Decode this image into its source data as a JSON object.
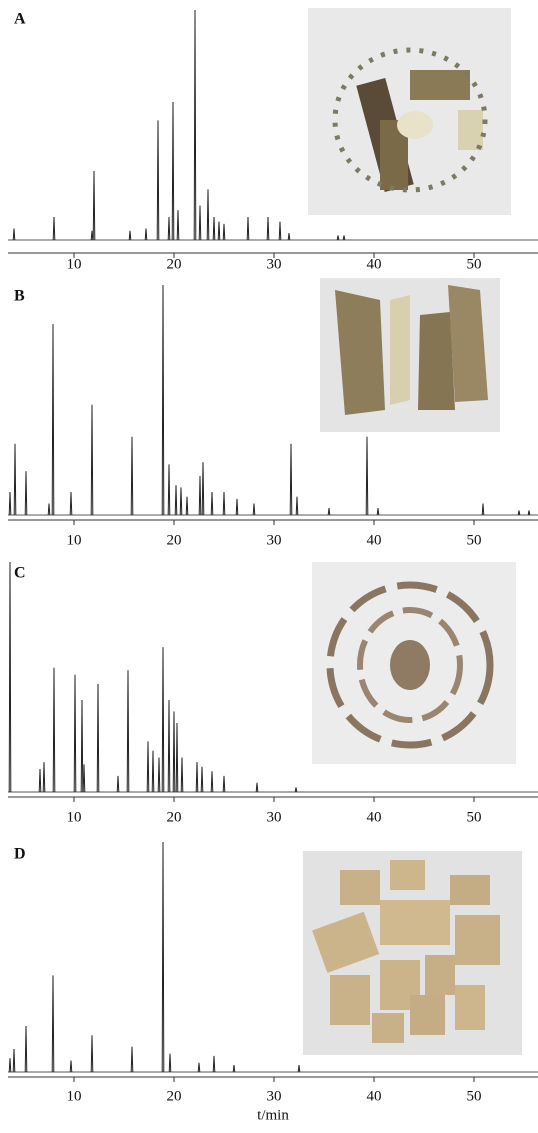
{
  "chart_data": [
    {
      "type": "chromatogram",
      "title": "A",
      "color": "#222",
      "x": [
        4.0,
        8.0,
        11.8,
        12.0,
        15.6,
        17.2,
        18.4,
        19.5,
        19.9,
        20.4,
        22.1,
        22.6,
        23.4,
        24.0,
        24.5,
        25.0,
        27.4,
        29.4,
        30.6,
        31.5,
        36.4,
        37.0
      ],
      "values": [
        5,
        10,
        4,
        30,
        4,
        5,
        52,
        10,
        60,
        13,
        100,
        15,
        22,
        10,
        8,
        7,
        10,
        10,
        8,
        3,
        2,
        2
      ],
      "xlim": [
        3.4,
        56.4
      ],
      "ylim": [
        0,
        100
      ],
      "xticks": [
        10,
        20,
        30,
        40,
        50
      ]
    },
    {
      "type": "chromatogram",
      "title": "B",
      "color": "#222",
      "x": [
        3.6,
        4.1,
        5.2,
        7.5,
        7.9,
        9.7,
        11.8,
        15.8,
        18.9,
        19.5,
        20.2,
        20.7,
        21.3,
        22.6,
        22.9,
        23.8,
        25.0,
        26.3,
        28.0,
        31.7,
        32.3,
        35.5,
        39.3,
        40.4,
        50.9,
        54.5,
        55.5
      ],
      "values": [
        10,
        31,
        19,
        5,
        83,
        10,
        48,
        34,
        100,
        22,
        13,
        12,
        8,
        17,
        23,
        10,
        10,
        7,
        5,
        31,
        8,
        3,
        34,
        3,
        5,
        2,
        2
      ],
      "xlim": [
        3.4,
        56.4
      ],
      "ylim": [
        0,
        100
      ],
      "xticks": [
        10,
        20,
        30,
        40,
        50
      ]
    },
    {
      "type": "chromatogram",
      "title": "C",
      "color": "#222",
      "x": [
        3.6,
        6.6,
        7.0,
        8.0,
        10.1,
        10.8,
        11.0,
        12.4,
        14.4,
        15.4,
        17.4,
        17.9,
        18.5,
        18.9,
        19.5,
        20.0,
        20.3,
        20.8,
        22.3,
        22.8,
        23.8,
        25.0,
        28.3,
        32.2
      ],
      "values": [
        100,
        10,
        13,
        54,
        51,
        40,
        12,
        47,
        7,
        53,
        22,
        18,
        15,
        63,
        40,
        35,
        30,
        15,
        13,
        11,
        9,
        7,
        4,
        2
      ],
      "xlim": [
        3.4,
        56.4
      ],
      "ylim": [
        0,
        100
      ],
      "xticks": [
        10,
        20,
        30,
        40,
        50
      ]
    },
    {
      "type": "chromatogram",
      "title": "D",
      "color": "#222",
      "x": [
        3.6,
        4.0,
        5.2,
        7.9,
        9.7,
        11.8,
        15.8,
        18.9,
        19.6,
        22.5,
        24.0,
        26.0,
        32.5
      ],
      "values": [
        6,
        10,
        20,
        42,
        5,
        16,
        11,
        100,
        8,
        4,
        7,
        3,
        3
      ],
      "xlim": [
        3.4,
        56.4
      ],
      "ylim": [
        0,
        100
      ],
      "xticks": [
        10,
        20,
        30,
        40,
        50
      ],
      "xlabel": "t/min"
    }
  ]
}
